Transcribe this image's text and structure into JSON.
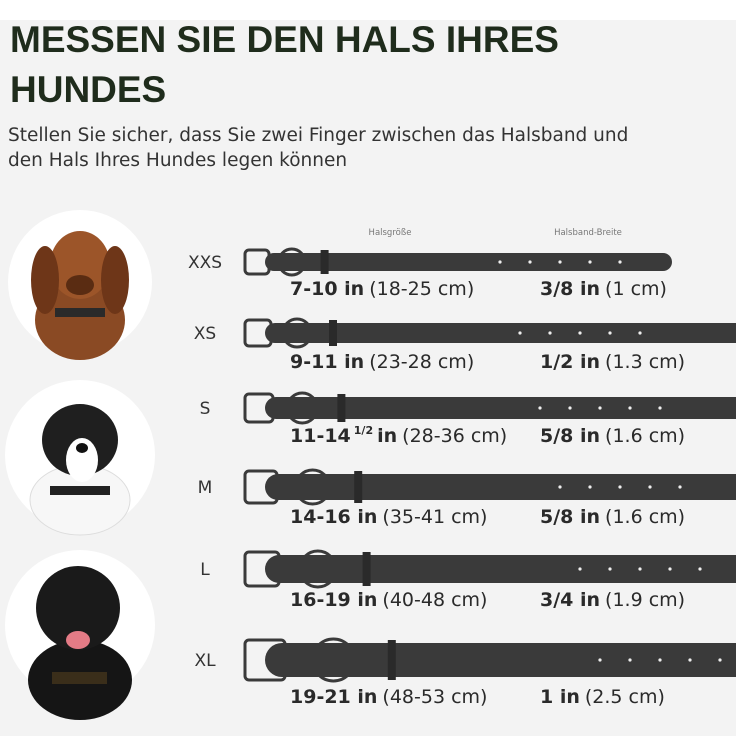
{
  "header": {
    "title_lines": [
      "MESSEN SIE DEN HALS IHRES",
      "HUNDES"
    ],
    "subtitle_lines": [
      "Stellen Sie sicher, dass Sie zwei Finger zwischen das Halsband und",
      "den Hals Ihres Hundes legen können"
    ]
  },
  "columns": {
    "neck": "Halsgröße",
    "width": "Halsband-Breite"
  },
  "rows": [
    {
      "size": "XXS",
      "neck": "7-10 in",
      "neck_cm": "(18-25 cm)",
      "width": "3/8 in",
      "width_cm": "(1 cm)"
    },
    {
      "size": "XS",
      "neck": "9-11 in",
      "neck_cm": "(23-28 cm)",
      "width": "1/2 in",
      "width_cm": "(1.3 cm)"
    },
    {
      "size": "S",
      "neck": "11-14",
      "neck_sup": "1/2",
      "neck_unit": "in",
      "neck_cm": "(28-36 cm)",
      "width": "5/8 in",
      "width_cm": "(1.6 cm)"
    },
    {
      "size": "M",
      "neck": "14-16 in",
      "neck_cm": "(35-41 cm)",
      "width": "5/8 in",
      "width_cm": "(1.6 cm)"
    },
    {
      "size": "L",
      "neck": "16-19 in",
      "neck_cm": "(40-48 cm)",
      "width": "3/4 in",
      "width_cm": "(1.9 cm)"
    },
    {
      "size": "XL",
      "neck": "19-21 in",
      "neck_cm": "(48-53 cm)",
      "width": "1 in",
      "width_cm": "(2.5 cm)"
    }
  ]
}
